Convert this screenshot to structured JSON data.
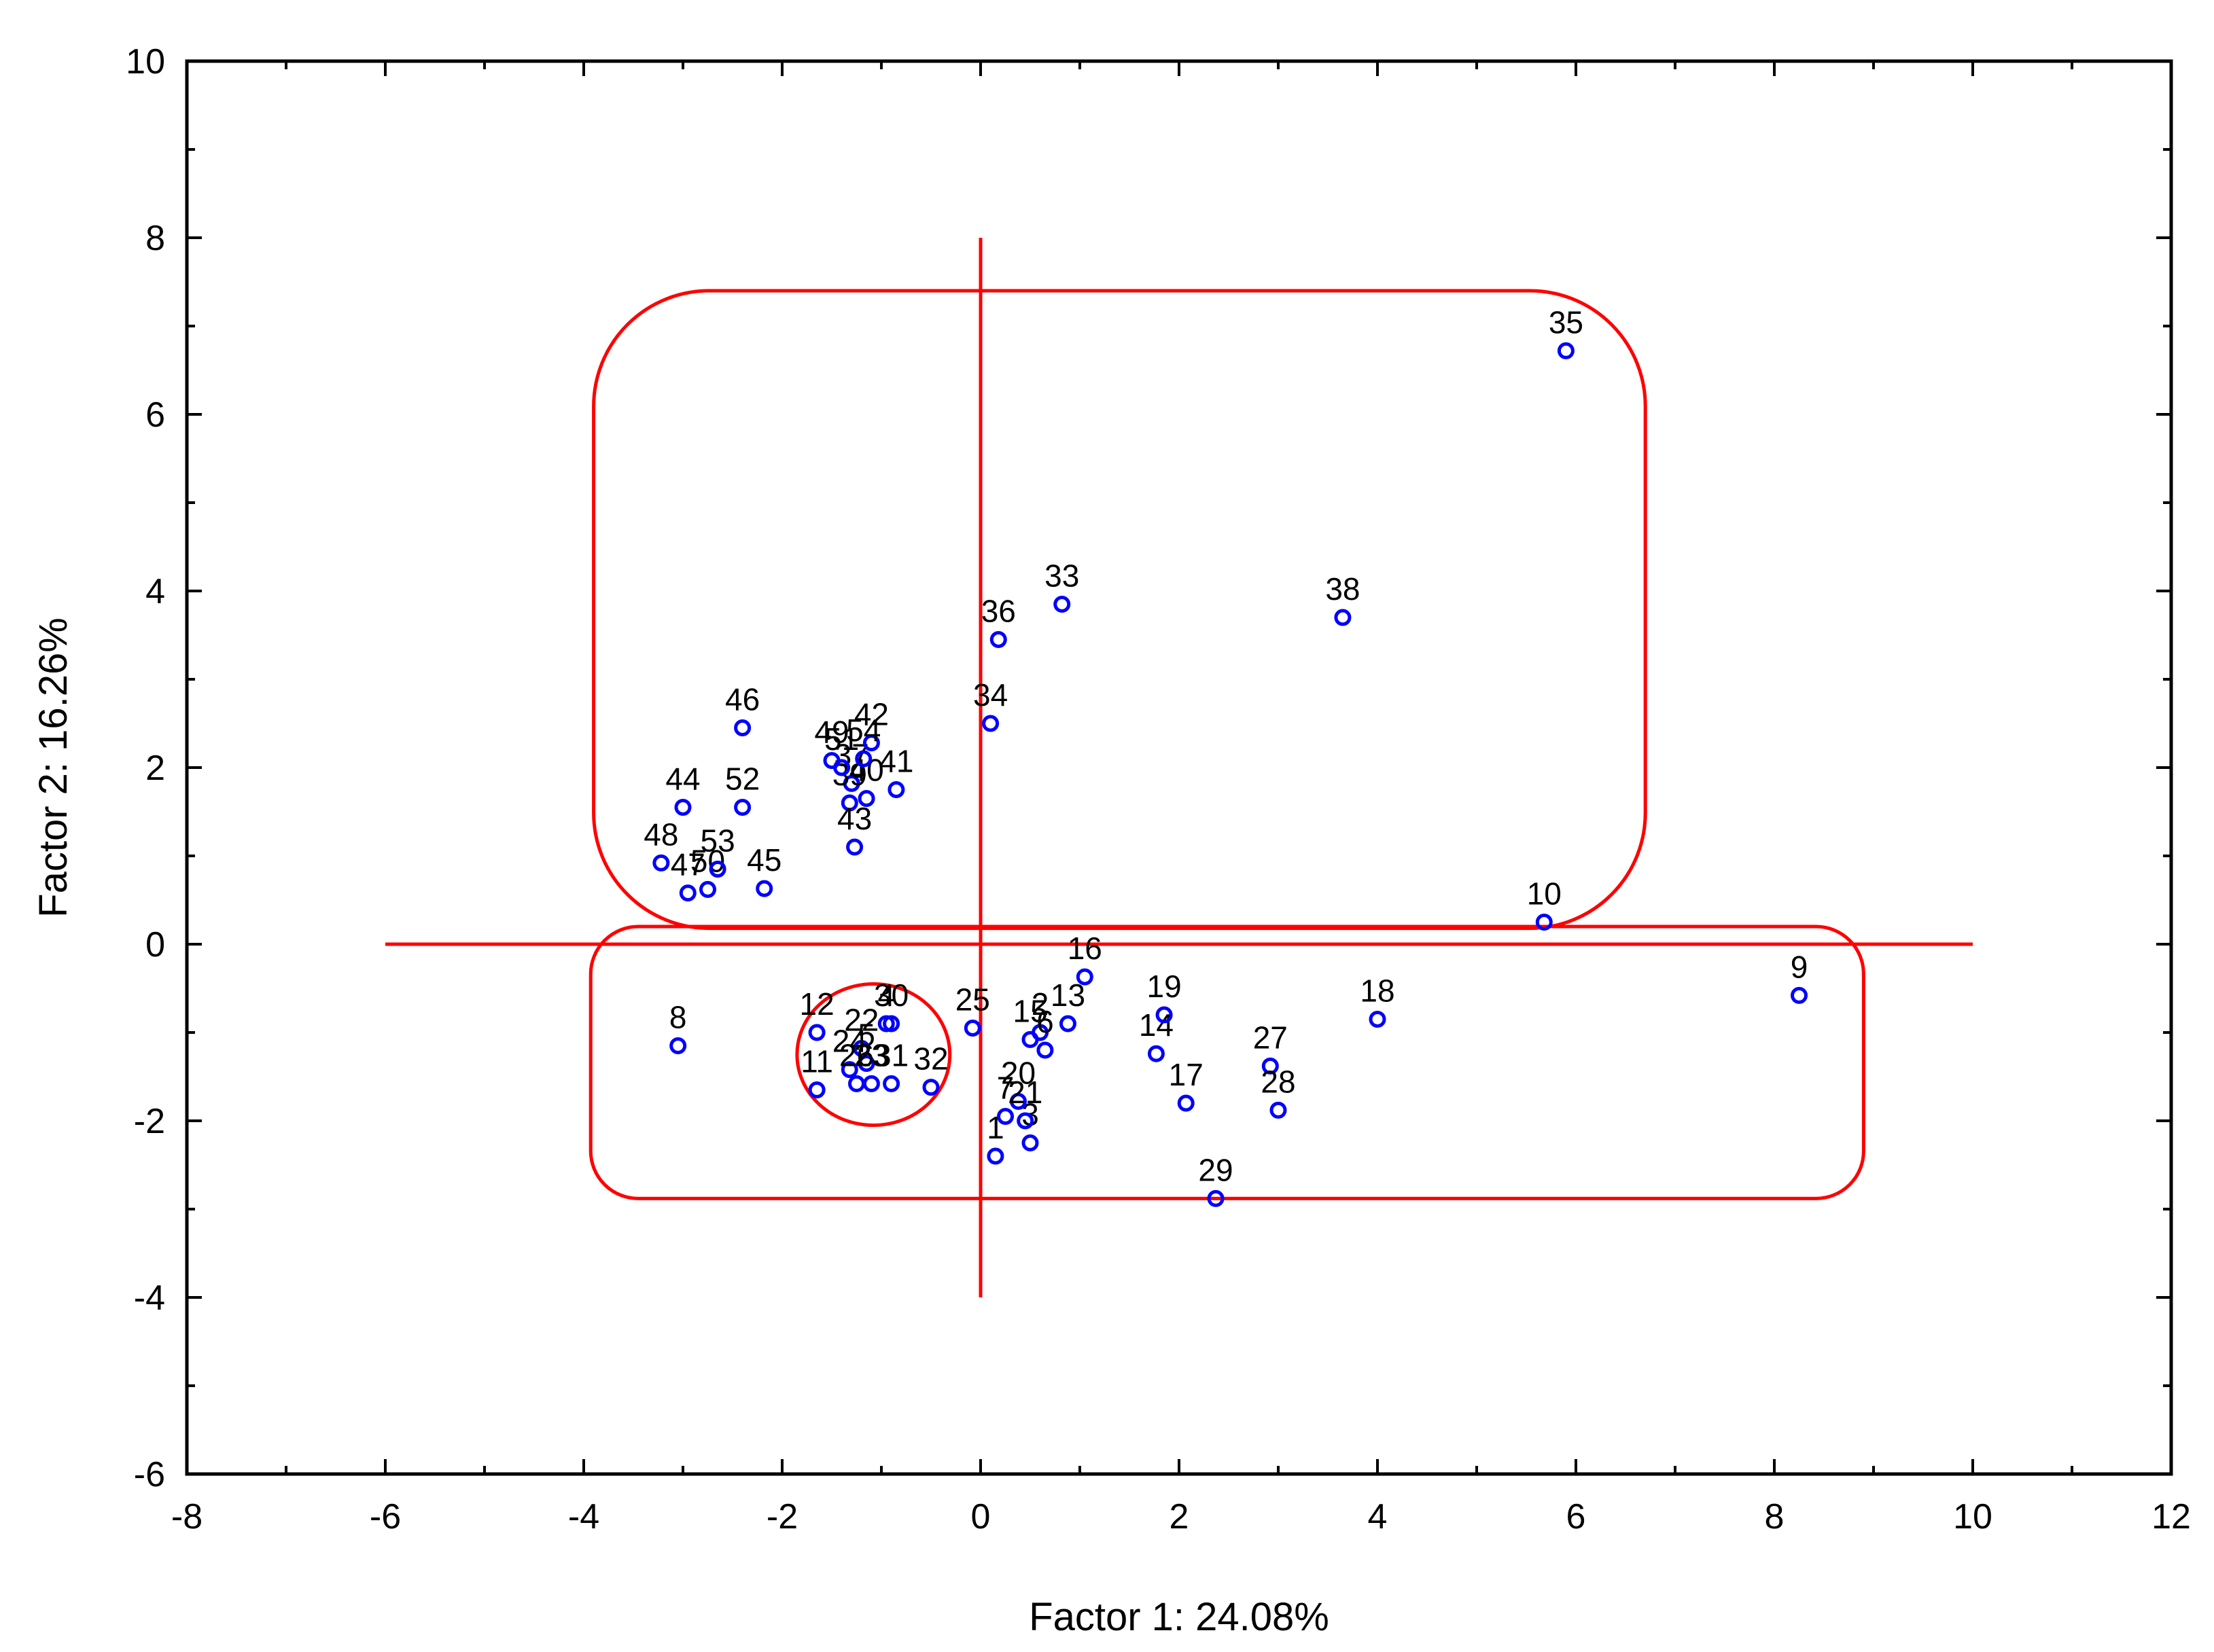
{
  "chart_data": {
    "type": "scatter",
    "title": "",
    "xlabel": "Factor 1: 24.08%",
    "ylabel": "Factor 2: 16.26%",
    "xlim": [
      -8,
      12
    ],
    "ylim": [
      -6,
      10
    ],
    "xticks": [
      "-8",
      "-6",
      "-4",
      "-2",
      "0",
      "2",
      "4",
      "6",
      "8",
      "10",
      "12"
    ],
    "yticks": [
      "-6",
      "-4",
      "-2",
      "0",
      "2",
      "4",
      "6",
      "8",
      "10"
    ],
    "grid": false,
    "point_color": "#0000ff",
    "overlay_color": "#ff0000",
    "points": [
      {
        "label": "1",
        "x": 0.15,
        "y": -2.4
      },
      {
        "label": "2",
        "x": 0.6,
        "y": -1.0
      },
      {
        "label": "3",
        "x": 0.5,
        "y": -2.25
      },
      {
        "label": "4",
        "x": -0.95,
        "y": -0.9
      },
      {
        "label": "5",
        "x": -1.15,
        "y": -1.35
      },
      {
        "label": "6",
        "x": 0.65,
        "y": -1.2
      },
      {
        "label": "7",
        "x": 0.25,
        "y": -1.95
      },
      {
        "label": "8",
        "x": -3.05,
        "y": -1.15
      },
      {
        "label": "9",
        "x": 8.25,
        "y": -0.58
      },
      {
        "label": "10",
        "x": 5.68,
        "y": 0.25
      },
      {
        "label": "11",
        "x": -1.65,
        "y": -1.65
      },
      {
        "label": "12",
        "x": -1.65,
        "y": -1.0
      },
      {
        "label": "13",
        "x": 0.88,
        "y": -0.9
      },
      {
        "label": "14",
        "x": 1.77,
        "y": -1.24
      },
      {
        "label": "15",
        "x": 0.5,
        "y": -1.08
      },
      {
        "label": "16",
        "x": 1.05,
        "y": -0.37
      },
      {
        "label": "17",
        "x": 2.07,
        "y": -1.8
      },
      {
        "label": "18",
        "x": 4.0,
        "y": -0.85
      },
      {
        "label": "19",
        "x": 1.85,
        "y": -0.8
      },
      {
        "label": "20",
        "x": 0.38,
        "y": -1.78
      },
      {
        "label": "21",
        "x": 0.45,
        "y": -2.0
      },
      {
        "label": "22",
        "x": -1.2,
        "y": -1.18
      },
      {
        "label": "23",
        "x": -1.1,
        "y": -1.58
      },
      {
        "label": "24",
        "x": -1.32,
        "y": -1.42
      },
      {
        "label": "25",
        "x": -0.08,
        "y": -0.95
      },
      {
        "label": "26",
        "x": -1.25,
        "y": -1.58
      },
      {
        "label": "27",
        "x": 2.92,
        "y": -1.38
      },
      {
        "label": "28",
        "x": 3.0,
        "y": -1.88
      },
      {
        "label": "29",
        "x": 2.37,
        "y": -2.88
      },
      {
        "label": "30",
        "x": -0.9,
        "y": -0.9
      },
      {
        "label": "31",
        "x": -0.9,
        "y": -1.58
      },
      {
        "label": "32",
        "x": -0.5,
        "y": -1.62
      },
      {
        "label": "33",
        "x": 0.82,
        "y": 3.85
      },
      {
        "label": "34",
        "x": 0.1,
        "y": 2.5
      },
      {
        "label": "35",
        "x": 5.9,
        "y": 6.72
      },
      {
        "label": "36",
        "x": 0.18,
        "y": 3.45
      },
      {
        "label": "37",
        "x": -1.3,
        "y": 1.82
      },
      {
        "label": "38",
        "x": 3.65,
        "y": 3.7
      },
      {
        "label": "39",
        "x": -1.32,
        "y": 1.6
      },
      {
        "label": "40",
        "x": -1.15,
        "y": 1.65
      },
      {
        "label": "41",
        "x": -0.85,
        "y": 1.75
      },
      {
        "label": "42",
        "x": -1.1,
        "y": 2.28
      },
      {
        "label": "43",
        "x": -1.27,
        "y": 1.1
      },
      {
        "label": "44",
        "x": -3.0,
        "y": 1.55
      },
      {
        "label": "45",
        "x": -2.18,
        "y": 0.63
      },
      {
        "label": "46",
        "x": -2.4,
        "y": 2.45
      },
      {
        "label": "47",
        "x": -2.95,
        "y": 0.58
      },
      {
        "label": "48",
        "x": -3.22,
        "y": 0.92
      },
      {
        "label": "49",
        "x": -1.5,
        "y": 2.08
      },
      {
        "label": "50",
        "x": -2.75,
        "y": 0.62
      },
      {
        "label": "51",
        "x": -1.4,
        "y": 2.0
      },
      {
        "label": "52",
        "x": -2.4,
        "y": 1.55
      },
      {
        "label": "53",
        "x": -2.65,
        "y": 0.85
      },
      {
        "label": "54",
        "x": -1.18,
        "y": 2.1
      }
    ],
    "overlays": {
      "vertical_line": {
        "x": 0,
        "y_from": -4,
        "y_to": 8
      },
      "horizontal_line": {
        "y": 0,
        "x_from": -6,
        "x_to": 10
      },
      "upper_box": {
        "x1": -3.9,
        "y1": 0.18,
        "x2": 6.7,
        "y2": 7.4
      },
      "lower_box": {
        "x1": -3.93,
        "y1": -2.88,
        "x2": 8.9,
        "y2": 0.2
      },
      "circle": {
        "cx": -1.08,
        "cy": -1.25,
        "rx": 0.77,
        "ry": 0.8
      }
    }
  }
}
